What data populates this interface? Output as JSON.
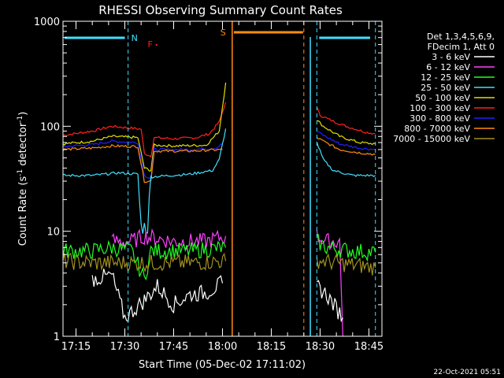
{
  "chart_data": {
    "type": "line",
    "title": "RHESSI Observing Summary Count Rates",
    "xlabel": "Start Time (05-Dec-02 17:11:02)",
    "ylabel_main": "Count Rate (s",
    "ylabel_sup1": "-1",
    "ylabel_mid": " detector",
    "ylabel_sup2": "-1",
    "ylabel_end": ")",
    "yscale": "log",
    "ylim": [
      1,
      1000
    ],
    "xlim": [
      "17:11",
      "18:49"
    ],
    "xticks": [
      "17:15",
      "17:30",
      "17:45",
      "18:00",
      "18:15",
      "18:30",
      "18:45"
    ],
    "yticks": [
      "1",
      "10",
      "100",
      "1000"
    ],
    "legend": {
      "placement": "right",
      "header": [
        "Det 1,3,4,5,6,9,",
        "FDecim 1, Att 0"
      ],
      "entries": [
        {
          "label": "3 - 6 keV",
          "color": "#ffffff"
        },
        {
          "label": "6 - 12 keV",
          "color": "#ff40ff"
        },
        {
          "label": "12 - 25 keV",
          "color": "#20ff20"
        },
        {
          "label": "25 - 50 keV",
          "color": "#40e0ff"
        },
        {
          "label": "50 - 100 keV",
          "color": "#e0e000"
        },
        {
          "label": "100 - 300 keV",
          "color": "#ff2020"
        },
        {
          "label": "300 - 800 keV",
          "color": "#2020ff"
        },
        {
          "label": "800 - 7000 keV",
          "color": "#ff8c10"
        },
        {
          "label": "7000 - 15000 keV",
          "color": "#a09020"
        }
      ]
    },
    "annotations": {
      "night_label": "N",
      "saa_label": "S",
      "flare_label": "F",
      "night_color": "#40e0ff",
      "saa_color": "#ff8c10",
      "flare_color": "#ff2020"
    },
    "series": [
      {
        "color": "#ff2020",
        "points": [
          [
            "17:11",
            82
          ],
          [
            "17:20",
            90
          ],
          [
            "17:26",
            100
          ],
          [
            "17:32",
            96
          ],
          [
            "17:35",
            94
          ],
          [
            "17:36",
            55
          ],
          [
            "17:38",
            52
          ],
          [
            "17:39",
            78
          ],
          [
            "17:45",
            76
          ],
          [
            "17:52",
            78
          ],
          [
            "17:56",
            85
          ],
          [
            "17:59",
            110
          ],
          [
            "18:01",
            170
          ]
        ]
      },
      {
        "color": "#ff2020",
        "points": [
          [
            "18:29",
            150
          ],
          [
            "18:30",
            128
          ],
          [
            "18:33",
            115
          ],
          [
            "18:38",
            100
          ],
          [
            "18:44",
            88
          ],
          [
            "18:47",
            85
          ]
        ]
      },
      {
        "color": "#e0e000",
        "points": [
          [
            "17:11",
            68
          ],
          [
            "17:20",
            72
          ],
          [
            "17:26",
            80
          ],
          [
            "17:34",
            78
          ],
          [
            "17:36",
            40
          ],
          [
            "17:38",
            38
          ],
          [
            "17:39",
            66
          ],
          [
            "17:45",
            65
          ],
          [
            "17:55",
            66
          ],
          [
            "17:59",
            90
          ],
          [
            "18:01",
            260
          ]
        ]
      },
      {
        "color": "#e0e000",
        "points": [
          [
            "18:29",
            115
          ],
          [
            "18:31",
            100
          ],
          [
            "18:36",
            80
          ],
          [
            "18:42",
            70
          ],
          [
            "18:47",
            68
          ]
        ]
      },
      {
        "color": "#2020ff",
        "points": [
          [
            "17:11",
            64
          ],
          [
            "17:20",
            67
          ],
          [
            "17:26",
            72
          ],
          [
            "17:34",
            70
          ],
          [
            "17:36",
            34
          ],
          [
            "17:38",
            32
          ],
          [
            "17:39",
            60
          ],
          [
            "17:50",
            60
          ],
          [
            "17:58",
            62
          ],
          [
            "18:00",
            68
          ]
        ]
      },
      {
        "color": "#2020ff",
        "points": [
          [
            "18:29",
            90
          ],
          [
            "18:31",
            82
          ],
          [
            "18:36",
            68
          ],
          [
            "18:42",
            62
          ],
          [
            "18:47",
            60
          ]
        ]
      },
      {
        "color": "#ff8c10",
        "points": [
          [
            "17:11",
            60
          ],
          [
            "17:20",
            62
          ],
          [
            "17:26",
            65
          ],
          [
            "17:34",
            64
          ],
          [
            "17:36",
            30
          ],
          [
            "17:38",
            30
          ],
          [
            "17:39",
            58
          ],
          [
            "17:50",
            58
          ],
          [
            "18:00",
            60
          ]
        ]
      },
      {
        "color": "#ff8c10",
        "points": [
          [
            "18:29",
            78
          ],
          [
            "18:31",
            72
          ],
          [
            "18:36",
            60
          ],
          [
            "18:42",
            56
          ],
          [
            "18:47",
            54
          ]
        ]
      },
      {
        "color": "#40e0ff",
        "points": [
          [
            "17:11",
            34
          ],
          [
            "17:20",
            34
          ],
          [
            "17:28",
            36
          ],
          [
            "17:34",
            35
          ],
          [
            "17:35",
            11
          ],
          [
            "17:37",
            11
          ],
          [
            "17:38",
            33
          ],
          [
            "17:50",
            35
          ],
          [
            "17:57",
            38
          ],
          [
            "17:59",
            48
          ],
          [
            "18:01",
            95
          ]
        ]
      },
      {
        "color": "#40e0ff",
        "points": [
          [
            "18:29",
            70
          ],
          [
            "18:31",
            48
          ],
          [
            "18:34",
            38
          ],
          [
            "18:40",
            34
          ],
          [
            "18:47",
            34
          ]
        ]
      },
      {
        "color": "#ff40ff",
        "points": [
          [
            "17:26",
            8
          ],
          [
            "17:32",
            8
          ],
          [
            "17:36",
            9
          ],
          [
            "17:45",
            8
          ],
          [
            "17:55",
            8
          ],
          [
            "18:01",
            9
          ]
        ]
      },
      {
        "color": "#ff40ff",
        "points": [
          [
            "18:29",
            9
          ],
          [
            "18:32",
            8
          ],
          [
            "18:36",
            8
          ],
          [
            "18:37",
            1
          ]
        ]
      },
      {
        "color": "#20ff20",
        "points": [
          [
            "17:11",
            6.5
          ],
          [
            "17:20",
            6.5
          ],
          [
            "17:26",
            7
          ],
          [
            "17:32",
            6.5
          ],
          [
            "17:36",
            3.5
          ],
          [
            "17:38",
            6.5
          ],
          [
            "17:50",
            6.5
          ],
          [
            "18:01",
            7
          ]
        ]
      },
      {
        "color": "#20ff20",
        "points": [
          [
            "18:29",
            8
          ],
          [
            "18:32",
            7
          ],
          [
            "18:40",
            6.5
          ],
          [
            "18:47",
            6.3
          ]
        ]
      },
      {
        "color": "#a09020",
        "points": [
          [
            "17:11",
            5.2
          ],
          [
            "17:20",
            5
          ],
          [
            "17:30",
            5
          ],
          [
            "17:40",
            5
          ],
          [
            "17:50",
            5
          ],
          [
            "18:01",
            5.2
          ]
        ]
      },
      {
        "color": "#a09020",
        "points": [
          [
            "18:29",
            5.3
          ],
          [
            "18:35",
            5
          ],
          [
            "18:47",
            4.5
          ]
        ]
      },
      {
        "color": "#ffffff",
        "points": [
          [
            "17:20",
            3.5
          ],
          [
            "17:26",
            3.8
          ],
          [
            "17:30",
            1.5
          ],
          [
            "17:36",
            2.2
          ],
          [
            "17:40",
            3
          ],
          [
            "17:45",
            2
          ],
          [
            "17:50",
            2.5
          ],
          [
            "17:55",
            2.6
          ],
          [
            "18:00",
            3.2
          ]
        ]
      },
      {
        "color": "#ffffff",
        "points": [
          [
            "18:29",
            3
          ],
          [
            "18:32",
            2.5
          ],
          [
            "18:37",
            1.5
          ]
        ]
      }
    ]
  },
  "footer": {
    "timestamp": "22-Oct-2021 05:51"
  }
}
